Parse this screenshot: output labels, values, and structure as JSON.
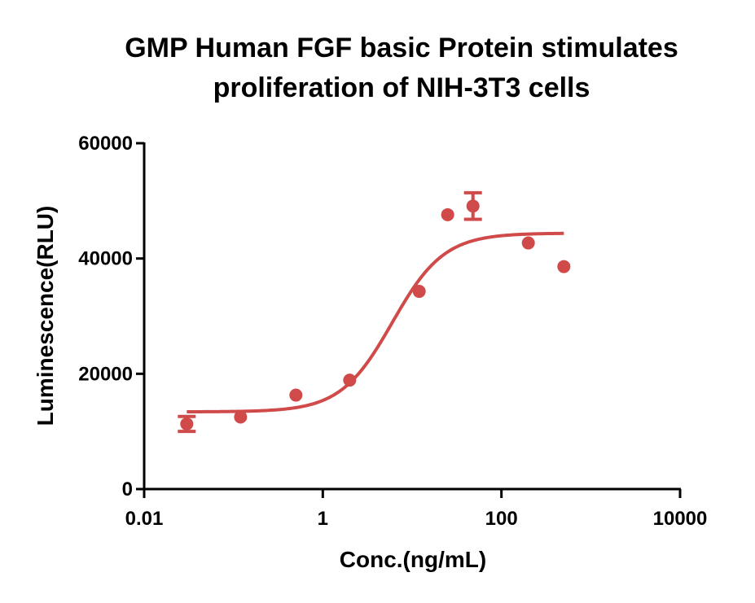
{
  "chart_data": {
    "type": "scatter",
    "title_lines": [
      "GMP Human FGF basic Protein stimulates",
      "proliferation of NIH-3T3 cells"
    ],
    "xlabel": "Conc.(ng/mL)",
    "ylabel": "Luminescence(RLU)",
    "x_scale": "log",
    "xlim": [
      0.01,
      10000
    ],
    "ylim": [
      0,
      60000
    ],
    "x_ticks": [
      {
        "value": 0.01,
        "label": "0.01"
      },
      {
        "value": 1,
        "label": "1"
      },
      {
        "value": 100,
        "label": "100"
      },
      {
        "value": 10000,
        "label": "10000"
      }
    ],
    "y_ticks": [
      {
        "value": 0,
        "label": "0"
      },
      {
        "value": 20000,
        "label": "20000"
      },
      {
        "value": 40000,
        "label": "40000"
      },
      {
        "value": 60000,
        "label": "60000"
      }
    ],
    "grid": false,
    "color": "#d04a4a",
    "points": [
      {
        "x": 0.03,
        "y": 11300,
        "err": 1300
      },
      {
        "x": 0.12,
        "y": 12500,
        "err": 0
      },
      {
        "x": 0.5,
        "y": 16300,
        "err": 0
      },
      {
        "x": 2,
        "y": 18900,
        "err": 0
      },
      {
        "x": 12,
        "y": 34300,
        "err": 0
      },
      {
        "x": 25,
        "y": 47600,
        "err": 0
      },
      {
        "x": 48,
        "y": 49100,
        "err": 2300
      },
      {
        "x": 200,
        "y": 42700,
        "err": 0
      },
      {
        "x": 500,
        "y": 38600,
        "err": 0
      }
    ],
    "fit_curve": {
      "model": "four-parameter logistic",
      "bottom": 13400,
      "top": 44400,
      "ec50": 6,
      "hill": 1.5,
      "x_range": [
        0.03,
        500
      ]
    }
  }
}
